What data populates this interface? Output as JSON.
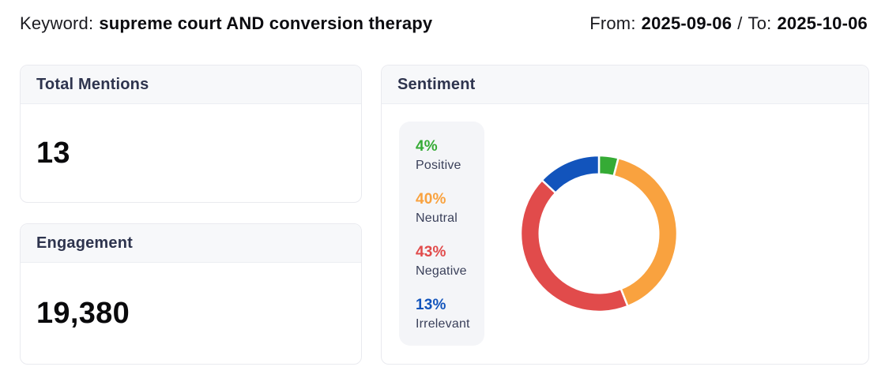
{
  "header": {
    "keyword_label": "Keyword:",
    "keyword_value": "supreme court AND conversion therapy",
    "from_label": "From:",
    "from_value": "2025-09-06",
    "separator": "/",
    "to_label": "To:",
    "to_value": "2025-10-06"
  },
  "cards": {
    "total_mentions": {
      "title": "Total Mentions",
      "value": "13"
    },
    "engagement": {
      "title": "Engagement",
      "value": "19,380"
    },
    "sentiment": {
      "title": "Sentiment"
    }
  },
  "chart_data": {
    "type": "pie",
    "title": "Sentiment",
    "donut": true,
    "inner_radius_ratio": 0.76,
    "start_angle_deg": -90,
    "direction": "clockwise",
    "legend_position": "left",
    "slice_border_color": "#ffffff",
    "segments": [
      {
        "label": "Positive",
        "value": 4,
        "unit": "%",
        "color": "#35AB35"
      },
      {
        "label": "Neutral",
        "value": 40,
        "unit": "%",
        "color": "#F9A23F"
      },
      {
        "label": "Negative",
        "value": 43,
        "unit": "%",
        "color": "#E14B4B"
      },
      {
        "label": "Irrelevant",
        "value": 13,
        "unit": "%",
        "color": "#1254BC"
      }
    ]
  },
  "colors": {
    "card_border": "#e9eaef",
    "card_header_bg": "#f7f8fa",
    "legend_panel_bg": "#f4f5f8",
    "title_text": "#2e344e",
    "metric_text": "#0a0a0c"
  }
}
